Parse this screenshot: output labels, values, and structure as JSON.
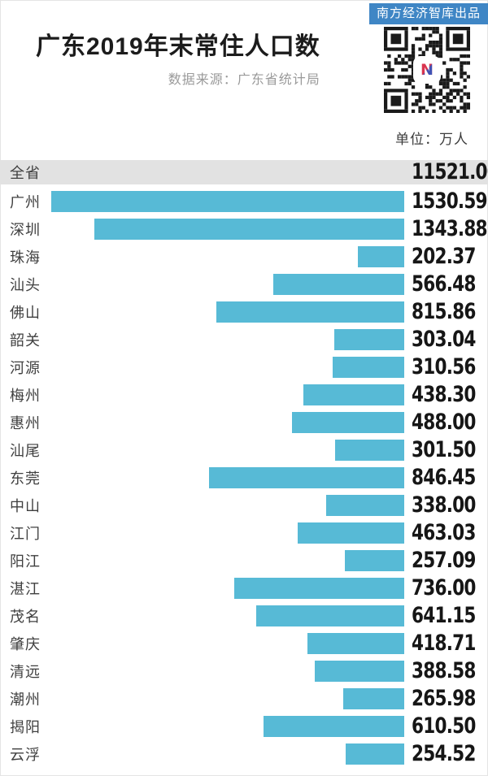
{
  "header": {
    "badge": "南方经济智库出品",
    "title": "广东2019年末常住人口数",
    "source_note": "数据来源：广东省统计局",
    "unit_label": "单位：万人",
    "qr_logo_letter": "N"
  },
  "colors": {
    "badge_bg": "#3f86c5",
    "badge_text": "#ffffff",
    "bar": "#57bad6",
    "total_band_bg": "#e2e2e2",
    "title_text": "#1c1c1c",
    "subtitle_text": "#9a9a9a",
    "label_text": "#3f3f3f",
    "value_text": "#161616",
    "unit_text": "#3c3c3c",
    "qr_dark": "#1a1a1a",
    "logo_red": "#d9344f",
    "logo_blue": "#4053b4"
  },
  "chart_data": {
    "type": "bar",
    "orientation": "horizontal",
    "bar_alignment": "right-edge-aligned",
    "title": "广东2019年末常住人口数",
    "source_note": "数据来源：广东省统计局",
    "unit": "万人",
    "legend": "none",
    "grid": false,
    "total_row": {
      "label": "全省",
      "value": 11521.0,
      "value_label": "11521.00"
    },
    "categories": [
      "广州",
      "深圳",
      "珠海",
      "汕头",
      "佛山",
      "韶关",
      "河源",
      "梅州",
      "惠州",
      "汕尾",
      "东莞",
      "中山",
      "江门",
      "阳江",
      "湛江",
      "茂名",
      "肇庆",
      "清远",
      "潮州",
      "揭阳",
      "云浮"
    ],
    "values": [
      1530.59,
      1343.88,
      202.37,
      566.48,
      815.86,
      303.04,
      310.56,
      438.3,
      488.0,
      301.5,
      846.45,
      338.0,
      463.03,
      257.09,
      736.0,
      641.15,
      418.71,
      388.58,
      265.98,
      610.5,
      254.52
    ],
    "value_labels": [
      "1530.59",
      "1343.88",
      "202.37",
      "566.48",
      "815.86",
      "303.04",
      "310.56",
      "438.30",
      "488.00",
      "301.50",
      "846.45",
      "338.00",
      "463.03",
      "257.09",
      "736.00",
      "641.15",
      "418.71",
      "388.58",
      "265.98",
      "610.50",
      "254.52"
    ],
    "value_range": [
      0,
      1530.59
    ]
  }
}
